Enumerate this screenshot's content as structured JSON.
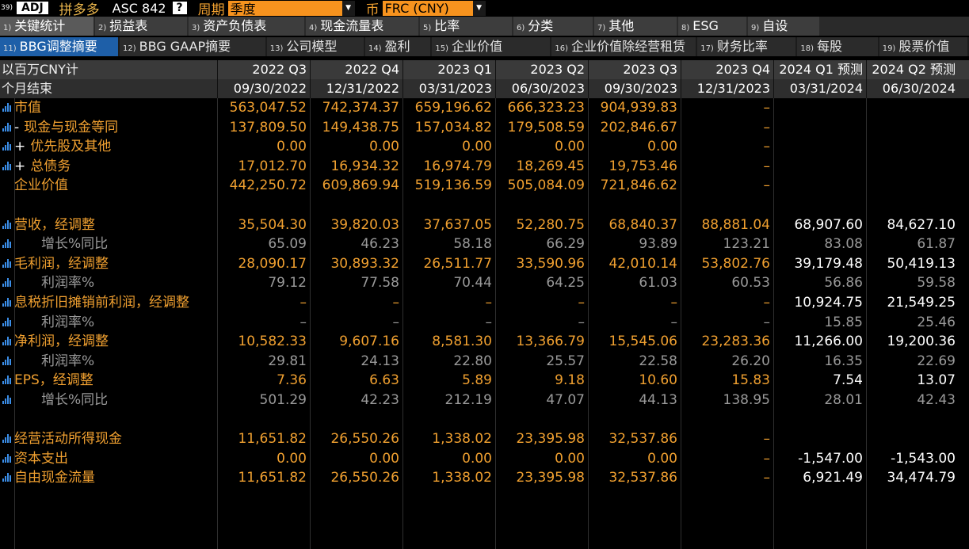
{
  "cmdbar": {
    "num": "39)",
    "adj": "ADJ",
    "company": "拼多多",
    "ticker": "ASC 842",
    "help": "?",
    "period_label": "周期",
    "period_value": "季度",
    "currency_label": "币",
    "currency_value": "FRC (CNY)"
  },
  "tabs_main": [
    {
      "n": "1)",
      "label": "关键统计"
    },
    {
      "n": "2)",
      "label": "损益表"
    },
    {
      "n": "3)",
      "label": "资产负债表"
    },
    {
      "n": "4)",
      "label": "现金流量表"
    },
    {
      "n": "5)",
      "label": "比率"
    },
    {
      "n": "6)",
      "label": "分类"
    },
    {
      "n": "7)",
      "label": "其他"
    },
    {
      "n": "8)",
      "label": "ESG"
    },
    {
      "n": "9)",
      "label": "自设"
    }
  ],
  "tabs_sub": [
    {
      "n": "11)",
      "label": "BBG调整摘要"
    },
    {
      "n": "12)",
      "label": "BBG GAAP摘要"
    },
    {
      "n": "13)",
      "label": "公司模型"
    },
    {
      "n": "14)",
      "label": "盈利"
    },
    {
      "n": "15)",
      "label": "企业价值"
    },
    {
      "n": "16)",
      "label": "企业价值除经营租赁"
    },
    {
      "n": "17)",
      "label": "财务比率"
    },
    {
      "n": "18)",
      "label": "每股"
    },
    {
      "n": "19)",
      "label": "股票价值"
    }
  ],
  "header": {
    "unit_label": "以百万CNY计",
    "period_end_label": "个月结束",
    "periods": [
      "2022 Q3",
      "2022 Q4",
      "2023 Q1",
      "2023 Q2",
      "2023 Q3",
      "2023 Q4",
      "2024 Q1 预测",
      "2024 Q2 预测"
    ],
    "dates": [
      "09/30/2022",
      "12/31/2022",
      "03/31/2023",
      "06/30/2023",
      "09/30/2023",
      "12/31/2023",
      "03/31/2024",
      "06/30/2024"
    ]
  },
  "rows": [
    {
      "label": "市值",
      "sign": "",
      "sub": false,
      "icon": true,
      "values": [
        "563,047.52",
        "742,374.37",
        "659,196.62",
        "666,323.23",
        "904,939.83",
        "–",
        "",
        ""
      ]
    },
    {
      "label": "现金与现金等同",
      "sign": "-",
      "sub": false,
      "icon": true,
      "values": [
        "137,809.50",
        "149,438.75",
        "157,034.82",
        "179,508.59",
        "202,846.67",
        "–",
        "",
        ""
      ]
    },
    {
      "label": "优先股及其他",
      "sign": "+",
      "sub": false,
      "icon": true,
      "values": [
        "0.00",
        "0.00",
        "0.00",
        "0.00",
        "0.00",
        "–",
        "",
        ""
      ]
    },
    {
      "label": "总债务",
      "sign": "+",
      "sub": false,
      "icon": true,
      "values": [
        "17,012.70",
        "16,934.32",
        "16,974.79",
        "18,269.45",
        "19,753.46",
        "–",
        "",
        ""
      ]
    },
    {
      "label": "企业价值",
      "sign": "",
      "sub": false,
      "icon": false,
      "values": [
        "442,250.72",
        "609,869.94",
        "519,136.59",
        "505,084.09",
        "721,846.62",
        "–",
        "",
        ""
      ]
    },
    {
      "label": "",
      "sign": "",
      "sub": false,
      "icon": false,
      "values": [
        "",
        "",
        "",
        "",
        "",
        "",
        "",
        ""
      ]
    },
    {
      "label": "营收，经调整",
      "sign": "",
      "sub": false,
      "icon": true,
      "values": [
        "35,504.30",
        "39,820.03",
        "37,637.05",
        "52,280.75",
        "68,840.37",
        "88,881.04",
        "68,907.60",
        "84,627.10"
      ]
    },
    {
      "label": "增长%同比",
      "sign": "",
      "sub": true,
      "icon": true,
      "values": [
        "65.09",
        "46.23",
        "58.18",
        "66.29",
        "93.89",
        "123.21",
        "83.08",
        "61.87"
      ]
    },
    {
      "label": "毛利润，经调整",
      "sign": "",
      "sub": false,
      "icon": true,
      "values": [
        "28,090.17",
        "30,893.32",
        "26,511.77",
        "33,590.96",
        "42,010.14",
        "53,802.76",
        "39,179.48",
        "50,419.13"
      ]
    },
    {
      "label": "利润率%",
      "sign": "",
      "sub": true,
      "icon": true,
      "values": [
        "79.12",
        "77.58",
        "70.44",
        "64.25",
        "61.03",
        "60.53",
        "56.86",
        "59.58"
      ]
    },
    {
      "label": "息税折旧摊销前利润，经调整",
      "sign": "",
      "sub": false,
      "icon": true,
      "values": [
        "–",
        "–",
        "–",
        "–",
        "–",
        "–",
        "10,924.75",
        "21,549.25"
      ]
    },
    {
      "label": "利润率%",
      "sign": "",
      "sub": true,
      "icon": true,
      "values": [
        "–",
        "–",
        "–",
        "–",
        "–",
        "–",
        "15.85",
        "25.46"
      ]
    },
    {
      "label": "净利润，经调整",
      "sign": "",
      "sub": false,
      "icon": true,
      "values": [
        "10,582.33",
        "9,607.16",
        "8,581.30",
        "13,366.79",
        "15,545.06",
        "23,283.36",
        "11,266.00",
        "19,200.36"
      ]
    },
    {
      "label": "利润率%",
      "sign": "",
      "sub": true,
      "icon": true,
      "values": [
        "29.81",
        "24.13",
        "22.80",
        "25.57",
        "22.58",
        "26.20",
        "16.35",
        "22.69"
      ]
    },
    {
      "label": "EPS，经调整",
      "sign": "",
      "sub": false,
      "icon": true,
      "values": [
        "7.36",
        "6.63",
        "5.89",
        "9.18",
        "10.60",
        "15.83",
        "7.54",
        "13.07"
      ]
    },
    {
      "label": "增长%同比",
      "sign": "",
      "sub": true,
      "icon": true,
      "values": [
        "501.29",
        "42.23",
        "212.19",
        "47.07",
        "44.13",
        "138.95",
        "28.01",
        "42.43"
      ]
    },
    {
      "label": "",
      "sign": "",
      "sub": false,
      "icon": false,
      "values": [
        "",
        "",
        "",
        "",
        "",
        "",
        "",
        ""
      ]
    },
    {
      "label": "经营活动所得现金",
      "sign": "",
      "sub": false,
      "icon": true,
      "values": [
        "11,651.82",
        "26,550.26",
        "1,338.02",
        "23,395.98",
        "32,537.86",
        "–",
        "",
        ""
      ]
    },
    {
      "label": "资本支出",
      "sign": "",
      "sub": false,
      "icon": true,
      "values": [
        "0.00",
        "0.00",
        "0.00",
        "0.00",
        "0.00",
        "–",
        "-1,547.00",
        "-1,543.00"
      ]
    },
    {
      "label": "自由现金流量",
      "sign": "",
      "sub": false,
      "icon": true,
      "values": [
        "11,651.82",
        "26,550.26",
        "1,338.02",
        "23,395.98",
        "32,537.86",
        "–",
        "6,921.49",
        "34,474.79"
      ]
    }
  ],
  "colors": {
    "accent_orange": "#f0a030",
    "active_tab_blue": "#1e5fa8",
    "icon_blue": "#3b8ee8",
    "sub_gray": "#9a9a9a"
  }
}
